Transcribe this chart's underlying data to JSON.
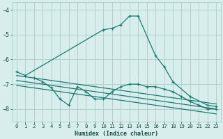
{
  "xlabel": "Humidex (Indice chaleur)",
  "xlim": [
    -0.5,
    23.5
  ],
  "ylim": [
    -8.5,
    -3.7
  ],
  "yticks": [
    -8,
    -7,
    -6,
    -5,
    -4
  ],
  "xticks": [
    0,
    1,
    2,
    3,
    4,
    5,
    6,
    7,
    8,
    9,
    10,
    11,
    12,
    13,
    14,
    15,
    16,
    17,
    18,
    19,
    20,
    21,
    22,
    23
  ],
  "bg_color": "#d7eeed",
  "grid_color": "#b0d0ce",
  "line_color": "#1a7a6e",
  "line1": {
    "x": [
      0,
      1,
      10,
      11,
      12,
      13,
      14,
      16,
      17,
      18,
      20,
      22,
      23
    ],
    "y": [
      -6.5,
      -6.65,
      -4.8,
      -4.75,
      -4.6,
      -4.25,
      -4.25,
      -5.85,
      -6.3,
      -6.9,
      -7.5,
      -7.85,
      -7.9
    ]
  },
  "line2": {
    "x": [
      2,
      3,
      4,
      5,
      6,
      7,
      8,
      9,
      10,
      11,
      12,
      13,
      14,
      15,
      16,
      17,
      18,
      19,
      20,
      21,
      22,
      23
    ],
    "y": [
      -6.75,
      -6.9,
      -7.15,
      -7.6,
      -7.85,
      -7.1,
      -7.3,
      -7.6,
      -7.6,
      -7.3,
      -7.1,
      -7.0,
      -7.0,
      -7.1,
      -7.1,
      -7.2,
      -7.3,
      -7.5,
      -7.7,
      -7.85,
      -8.0,
      -8.0
    ]
  },
  "straight_lines": [
    {
      "x": [
        0,
        23
      ],
      "y": [
        -6.65,
        -7.8
      ]
    },
    {
      "x": [
        0,
        23
      ],
      "y": [
        -6.85,
        -8.0
      ]
    },
    {
      "x": [
        0,
        23
      ],
      "y": [
        -7.05,
        -8.2
      ]
    }
  ]
}
